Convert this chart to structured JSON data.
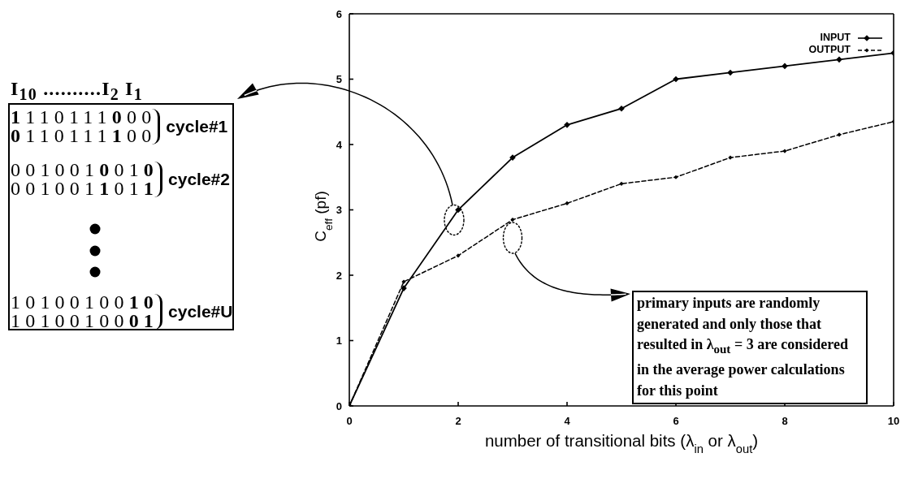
{
  "chart_data": {
    "type": "line",
    "xlabel": "number of transitional bits (λ$_{in}$ or λ$_{out}$)",
    "ylabel": "C$_{eff}$ (pf)",
    "x": [
      0,
      1,
      2,
      3,
      4,
      5,
      6,
      7,
      8,
      9,
      10
    ],
    "series": [
      {
        "name": "INPUT",
        "color": "#000000",
        "line_style": "solid",
        "values": [
          0,
          1.8,
          3.0,
          3.8,
          4.3,
          4.55,
          5.0,
          5.1,
          5.2,
          5.3,
          5.4
        ]
      },
      {
        "name": "OUTPUT",
        "color": "#000000",
        "line_style": "dashed",
        "values": [
          0,
          1.9,
          2.3,
          2.85,
          3.1,
          3.4,
          3.5,
          3.8,
          3.9,
          4.15,
          4.35
        ]
      }
    ],
    "xlim": [
      0,
      10
    ],
    "ylim": [
      0,
      6
    ],
    "xticks": [
      0,
      2,
      4,
      6,
      8,
      10
    ],
    "yticks": [
      0,
      1,
      2,
      3,
      4,
      5,
      6
    ],
    "legend": "top right",
    "marker": "diamond",
    "annotations": [
      "I$_{10}$ ..........I$_{2}$ I$_{1}$",
      "1110111000",
      "0110111100",
      "cycle#1",
      "0010010010",
      "0010011011",
      "cycle#2",
      "1010010010",
      "1010010001",
      "cycle#U",
      "primary inputs are randomly generated and only those that resulted in λ$_{out}$ = 3 are considered in the average power calculations for this point"
    ]
  }
}
